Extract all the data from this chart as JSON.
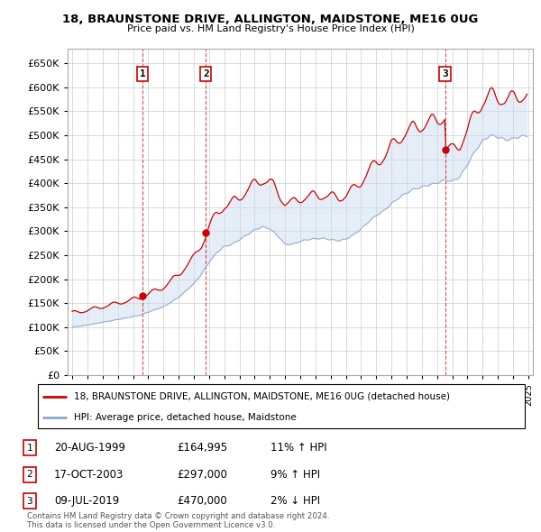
{
  "title": "18, BRAUNSTONE DRIVE, ALLINGTON, MAIDSTONE, ME16 0UG",
  "subtitle": "Price paid vs. HM Land Registry's House Price Index (HPI)",
  "sale_dates_num": [
    1999.64,
    2003.79,
    2019.52
  ],
  "sale_prices": [
    164995,
    297000,
    470000
  ],
  "sale_labels": [
    "1",
    "2",
    "3"
  ],
  "sale_info": [
    {
      "label": "1",
      "date": "20-AUG-1999",
      "price": "£164,995",
      "hpi": "11% ↑ HPI"
    },
    {
      "label": "2",
      "date": "17-OCT-2003",
      "price": "£297,000",
      "hpi": "9% ↑ HPI"
    },
    {
      "label": "3",
      "date": "09-JUL-2019",
      "price": "£470,000",
      "hpi": "2% ↓ HPI"
    }
  ],
  "legend_line1": "18, BRAUNSTONE DRIVE, ALLINGTON, MAIDSTONE, ME16 0UG (detached house)",
  "legend_line2": "HPI: Average price, detached house, Maidstone",
  "footer": "Contains HM Land Registry data © Crown copyright and database right 2024.\nThis data is licensed under the Open Government Licence v3.0.",
  "ylim": [
    0,
    680000
  ],
  "yticks": [
    0,
    50000,
    100000,
    150000,
    200000,
    250000,
    300000,
    350000,
    400000,
    450000,
    500000,
    550000,
    600000,
    650000
  ],
  "price_line_color": "#cc0000",
  "hpi_line_color": "#88aacc",
  "sale_marker_color": "#cc0000",
  "vline_color": "#cc0000",
  "shade_color": "#ccddf0",
  "grid_color": "#cccccc",
  "background_color": "#ffffff"
}
